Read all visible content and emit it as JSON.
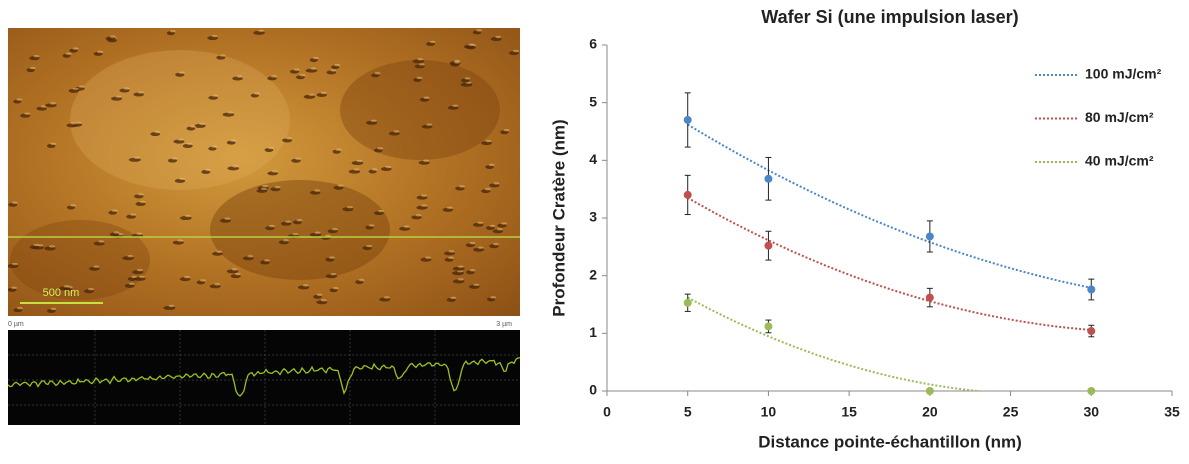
{
  "afm_image": {
    "scale_bar": "500 nm",
    "x_start": "0 µm",
    "x_end": "3 µm"
  },
  "chart_data": {
    "type": "scatter",
    "title": "Wafer Si (une impulsion laser)",
    "xlabel": "Distance pointe-échantillon (nm)",
    "ylabel": "Profondeur Cratère (nm)",
    "xlim": [
      0,
      35
    ],
    "xticks": [
      0,
      5,
      10,
      15,
      20,
      25,
      30,
      35
    ],
    "ylim": [
      0,
      6
    ],
    "yticks": [
      0,
      1,
      2,
      3,
      4,
      5,
      6
    ],
    "trendline": "polynomial-2",
    "legend": "upper-right",
    "series": [
      {
        "name": "100 mJ/cm²",
        "color": "#4a86c8",
        "x": [
          5,
          10,
          20,
          30
        ],
        "values": [
          4.7,
          3.68,
          2.68,
          1.76
        ],
        "errors": [
          0.47,
          0.37,
          0.27,
          0.18
        ]
      },
      {
        "name": "80 mJ/cm²",
        "color": "#c0504d",
        "x": [
          5,
          10,
          20,
          30
        ],
        "values": [
          3.4,
          2.52,
          1.62,
          1.04
        ],
        "errors": [
          0.34,
          0.25,
          0.16,
          0.1
        ]
      },
      {
        "name": "40 mJ/cm²",
        "color": "#9bbb59",
        "x": [
          5,
          10,
          20,
          30
        ],
        "values": [
          1.53,
          1.12,
          0,
          0
        ],
        "errors": [
          0.15,
          0.11,
          0,
          0
        ]
      }
    ]
  }
}
